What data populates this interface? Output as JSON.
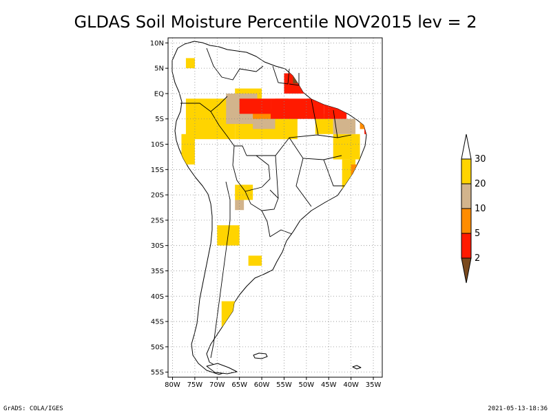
{
  "title": "GLDAS Soil Moisture Percentile NOV2015 lev = 2",
  "footer": {
    "left": "GrADS: COLA/IGES",
    "right": "2021-05-13-18:36"
  },
  "map": {
    "lon_range": [
      -81,
      -33
    ],
    "lat_range": [
      -56,
      11
    ],
    "grid_on": true,
    "lat_ticks": [
      {
        "v": 10,
        "label": "10N"
      },
      {
        "v": 5,
        "label": "5N"
      },
      {
        "v": 0,
        "label": "EQ"
      },
      {
        "v": -5,
        "label": "5S"
      },
      {
        "v": -10,
        "label": "10S"
      },
      {
        "v": -15,
        "label": "15S"
      },
      {
        "v": -20,
        "label": "20S"
      },
      {
        "v": -25,
        "label": "25S"
      },
      {
        "v": -30,
        "label": "30S"
      },
      {
        "v": -35,
        "label": "35S"
      },
      {
        "v": -40,
        "label": "40S"
      },
      {
        "v": -45,
        "label": "45S"
      },
      {
        "v": -50,
        "label": "50S"
      },
      {
        "v": -55,
        "label": "55S"
      }
    ],
    "lon_ticks": [
      {
        "v": -80,
        "label": "80W"
      },
      {
        "v": -75,
        "label": "75W"
      },
      {
        "v": -70,
        "label": "70W"
      },
      {
        "v": -65,
        "label": "65W"
      },
      {
        "v": -60,
        "label": "60W"
      },
      {
        "v": -55,
        "label": "55W"
      },
      {
        "v": -50,
        "label": "50W"
      },
      {
        "v": -45,
        "label": "45W"
      },
      {
        "v": -40,
        "label": "40W"
      },
      {
        "v": -35,
        "label": "35W"
      }
    ]
  },
  "colorbar": {
    "labels": [
      "30",
      "20",
      "10",
      "5",
      "2"
    ],
    "colors": [
      "#ffffff",
      "#ffd400",
      "#d2b48c",
      "#ff8c00",
      "#ff1a00",
      "#7a4a1e"
    ]
  },
  "colors": {
    "p30": "#ffd400",
    "p20": "#d2b48c",
    "p10": "#ff8c00",
    "p5": "#ff1a00",
    "p2": "#7a4a1e"
  },
  "chart_data": {
    "type": "heatmap",
    "variable": "soil moisture percentile",
    "classes": [
      "<2",
      "2-5",
      "5-10",
      "10-20",
      "20-30"
    ],
    "regions": [
      {
        "cls": "p30",
        "lon": [
          -77,
          -66
        ],
        "lat": [
          -9,
          -1
        ]
      },
      {
        "cls": "p30",
        "lon": [
          -66,
          -52
        ],
        "lat": [
          -9,
          -3
        ]
      },
      {
        "cls": "p30",
        "lon": [
          -48,
          -44
        ],
        "lat": [
          -8,
          -4
        ]
      },
      {
        "cls": "p30",
        "lon": [
          -44,
          -38
        ],
        "lat": [
          -13,
          -8
        ]
      },
      {
        "cls": "p30",
        "lon": [
          -42,
          -39
        ],
        "lat": [
          -19,
          -13
        ]
      },
      {
        "cls": "p30",
        "lon": [
          -78,
          -75
        ],
        "lat": [
          -14,
          -8
        ]
      },
      {
        "cls": "p30",
        "lon": [
          -77,
          -75
        ],
        "lat": [
          5,
          7
        ]
      },
      {
        "cls": "p30",
        "lon": [
          -70,
          -65
        ],
        "lat": [
          -30,
          -26
        ]
      },
      {
        "cls": "p30",
        "lon": [
          -63,
          -60
        ],
        "lat": [
          -34,
          -32
        ]
      },
      {
        "cls": "p30",
        "lon": [
          -69,
          -65
        ],
        "lat": [
          -46,
          -41
        ]
      },
      {
        "cls": "p30",
        "lon": [
          -66,
          -62
        ],
        "lat": [
          -21,
          -18
        ]
      },
      {
        "cls": "p30",
        "lon": [
          -66,
          -60
        ],
        "lat": [
          -2,
          1
        ]
      },
      {
        "cls": "p20",
        "lon": [
          -68,
          -61
        ],
        "lat": [
          -6,
          0
        ]
      },
      {
        "cls": "p20",
        "lon": [
          -54,
          -49
        ],
        "lat": [
          1,
          5
        ]
      },
      {
        "cls": "p20",
        "lon": [
          -44,
          -39
        ],
        "lat": [
          -8,
          -5
        ]
      },
      {
        "cls": "p20",
        "lon": [
          -62,
          -57
        ],
        "lat": [
          -7,
          -5
        ]
      },
      {
        "cls": "p20",
        "lon": [
          -66,
          -64
        ],
        "lat": [
          -23,
          -21
        ]
      },
      {
        "cls": "p10",
        "lon": [
          -62,
          -58
        ],
        "lat": [
          -5,
          -2
        ]
      },
      {
        "cls": "p10",
        "lon": [
          -38,
          -36
        ],
        "lat": [
          -7,
          -4
        ]
      },
      {
        "cls": "p10",
        "lon": [
          -40,
          -38
        ],
        "lat": [
          -17,
          -14
        ]
      },
      {
        "cls": "p10",
        "lon": [
          -57,
          -54
        ],
        "lat": [
          -3,
          -1
        ]
      },
      {
        "cls": "p5",
        "lon": [
          -58,
          -46
        ],
        "lat": [
          -5,
          -1
        ]
      },
      {
        "cls": "p5",
        "lon": [
          -55,
          -50
        ],
        "lat": [
          0,
          4
        ]
      },
      {
        "cls": "p5",
        "lon": [
          -46,
          -41
        ],
        "lat": [
          -5,
          -2
        ]
      },
      {
        "cls": "p5",
        "lon": [
          -65,
          -58
        ],
        "lat": [
          -4,
          -1
        ]
      },
      {
        "cls": "p5",
        "lon": [
          -37,
          -35
        ],
        "lat": [
          -8,
          -5
        ]
      },
      {
        "cls": "p5",
        "lon": [
          -50,
          -47
        ],
        "lat": [
          -3,
          -1
        ]
      },
      {
        "cls": "p2",
        "lon": [
          -53,
          -51
        ],
        "lat": [
          2,
          5
        ]
      }
    ]
  }
}
